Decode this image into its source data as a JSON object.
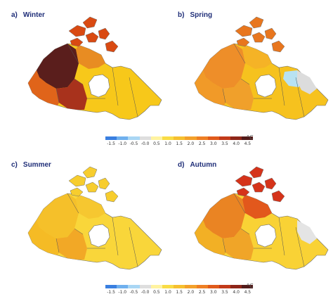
{
  "panels": [
    {
      "letter": "a)",
      "title": "Winter",
      "colors": {
        "land": "#f7c81a",
        "west": "#e0641a",
        "central": "#a8321c",
        "northwest": "#5a1e1c",
        "islands": "#d94a12",
        "north": "#e88c22"
      }
    },
    {
      "letter": "b)",
      "title": "Spring",
      "colors": {
        "land": "#f6c21e",
        "west": "#f19a28",
        "central": "#f0a02b",
        "northwest": "#ee8e29",
        "islands": "#e8761e",
        "north": "#f5b326",
        "cool": "#b8e2f2",
        "grey": "#dcdcdc"
      }
    },
    {
      "letter": "c)",
      "title": "Summer",
      "colors": {
        "land": "#f9d63a",
        "west": "#f5bb25",
        "central": "#f2a826",
        "northwest": "#f5c02a",
        "islands": "#f7cd2e",
        "north": "#f6c730"
      }
    },
    {
      "letter": "d)",
      "title": "Autumn",
      "colors": {
        "land": "#f9d235",
        "west": "#f2b025",
        "central": "#f0a528",
        "northwest": "#ea8423",
        "islands": "#d5331a",
        "north": "#e2581c",
        "grey": "#e4e4e4"
      }
    }
  ],
  "colorbar": {
    "ticks": [
      "-1.5",
      "-1.0",
      "-0.5",
      "-0.0",
      "0.5",
      "1.0",
      "1.5",
      "2.0",
      "2.5",
      "3.0",
      "3.5",
      "4.0",
      "4.5"
    ],
    "colors": [
      "#3a7fe0",
      "#6fb0ee",
      "#a9d6f4",
      "#dedede",
      "#fff3a0",
      "#f9dc45",
      "#f6c030",
      "#f3a12b",
      "#ee7f24",
      "#e05a1b",
      "#c23a1a",
      "#8e2619",
      "#521b1a"
    ],
    "unit": "°C"
  }
}
